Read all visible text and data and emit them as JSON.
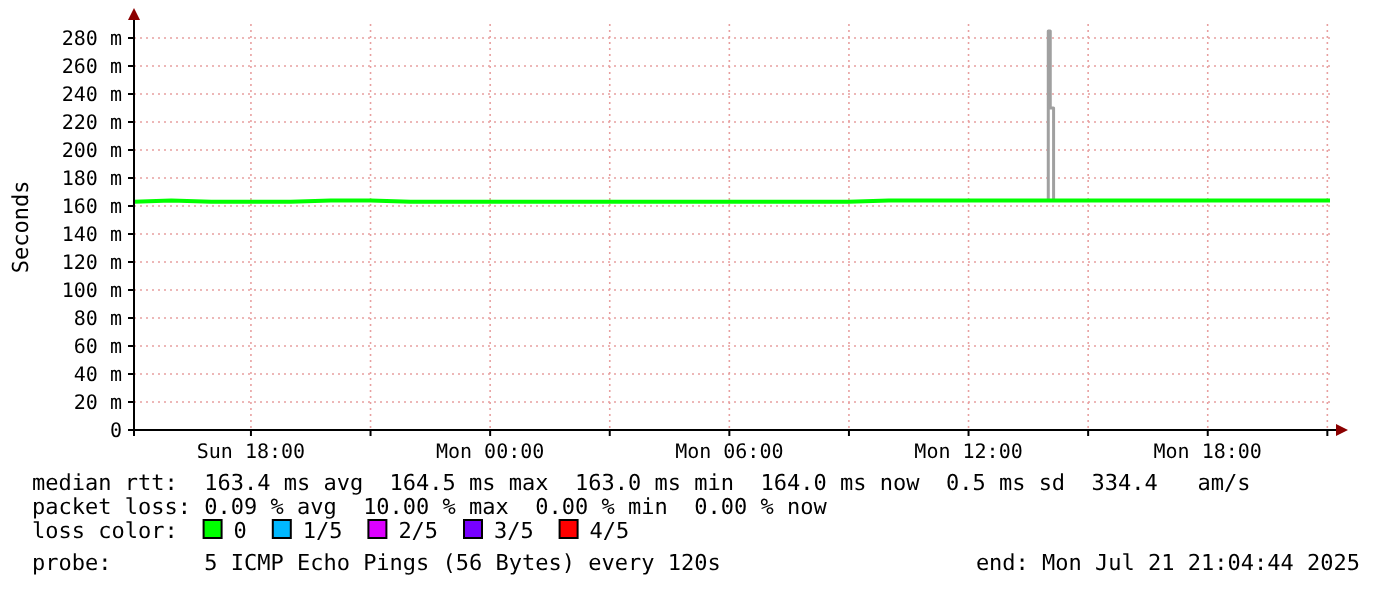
{
  "chart_data": {
    "type": "line",
    "ylabel": "Seconds",
    "xlim": [
      "2025-07-20T15:04",
      "2025-07-21T21:04"
    ],
    "xticks": [
      {
        "value": "2025-07-20T18:00",
        "label": "Sun 18:00"
      },
      {
        "value": "2025-07-20T21:00",
        "label": null
      },
      {
        "value": "2025-07-21T00:00",
        "label": "Mon 00:00"
      },
      {
        "value": "2025-07-21T03:00",
        "label": null
      },
      {
        "value": "2025-07-21T06:00",
        "label": "Mon 06:00"
      },
      {
        "value": "2025-07-21T09:00",
        "label": null
      },
      {
        "value": "2025-07-21T12:00",
        "label": "Mon 12:00"
      },
      {
        "value": "2025-07-21T15:00",
        "label": null
      },
      {
        "value": "2025-07-21T18:00",
        "label": "Mon 18:00"
      },
      {
        "value": "2025-07-21T21:00",
        "label": null
      }
    ],
    "ylim": [
      0,
      290
    ],
    "yticks": [
      0,
      {
        "value": 20,
        "label": "20 m"
      },
      {
        "value": 40,
        "label": "40 m"
      },
      {
        "value": 60,
        "label": "60 m"
      },
      {
        "value": 80,
        "label": "80 m"
      },
      {
        "value": 100,
        "label": "100 m"
      },
      {
        "value": 120,
        "label": "120 m"
      },
      {
        "value": 140,
        "label": "140 m"
      },
      {
        "value": 160,
        "label": "160 m"
      },
      {
        "value": 180,
        "label": "180 m"
      },
      {
        "value": 200,
        "label": "200 m"
      },
      {
        "value": 220,
        "label": "220 m"
      },
      {
        "value": 240,
        "label": "240 m"
      },
      {
        "value": 260,
        "label": "260 m"
      },
      {
        "value": 280,
        "label": "280 m"
      }
    ],
    "grid": true,
    "legend": "bottom",
    "legend_title": "loss color:",
    "series": [
      {
        "type": "step",
        "color": "#a0a0a0",
        "x": [
          "2025-07-21T13:57",
          "2025-07-21T14:00",
          "2025-07-21T14:03",
          "2025-07-21T14:08"
        ],
        "values": [
          164,
          285,
          230,
          164
        ]
      },
      {
        "name": "0",
        "color": "#00ff00",
        "x": [
          "2025-07-20T15:04",
          "2025-07-20T16:00",
          "2025-07-20T17:00",
          "2025-07-20T18:00",
          "2025-07-20T19:00",
          "2025-07-20T20:00",
          "2025-07-20T21:00",
          "2025-07-20T22:00",
          "2025-07-20T23:00",
          "2025-07-21T00:00",
          "2025-07-21T01:00",
          "2025-07-21T02:00",
          "2025-07-21T03:00",
          "2025-07-21T04:00",
          "2025-07-21T05:00",
          "2025-07-21T06:00",
          "2025-07-21T07:00",
          "2025-07-21T08:00",
          "2025-07-21T09:00",
          "2025-07-21T10:00",
          "2025-07-21T11:00",
          "2025-07-21T12:00",
          "2025-07-21T13:00",
          "2025-07-21T14:00",
          "2025-07-21T15:00",
          "2025-07-21T16:00",
          "2025-07-21T17:00",
          "2025-07-21T18:00",
          "2025-07-21T19:00",
          "2025-07-21T20:00",
          "2025-07-21T21:04"
        ],
        "values": [
          163,
          164,
          163,
          163,
          163,
          164,
          164,
          163,
          163,
          163,
          163,
          163,
          163,
          163,
          163,
          163,
          163,
          163,
          163,
          164,
          164,
          164,
          164,
          164,
          164,
          164,
          164,
          164,
          164,
          164,
          164
        ]
      },
      {
        "name": "1/5",
        "color": "#00b8ff"
      },
      {
        "name": "2/5",
        "color": "#dd00ff"
      },
      {
        "name": "3/5",
        "color": "#7700ff"
      },
      {
        "name": "4/5",
        "color": "#ff0000"
      }
    ],
    "annotations": [
      "median rtt:  163.4 ms avg  164.5 ms max  163.0 ms min  164.0 ms now  0.5 ms sd  334.4   am/s",
      "packet loss: 0.09 % avg  10.00 % max  0.00 % min  0.00 % now",
      "probe:       5 ICMP Echo Pings (56 Bytes) every 120s",
      "end: Mon Jul 21 21:04:44 2025"
    ]
  }
}
